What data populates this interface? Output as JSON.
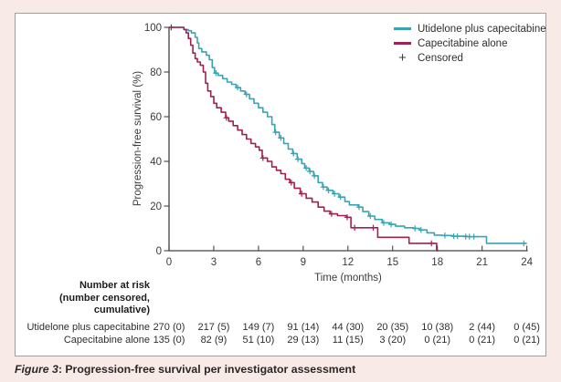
{
  "figure": {
    "caption": {
      "label": "Figure 3",
      "separator": ": ",
      "title": "Progression-free survival per investigator assessment"
    }
  },
  "chart_data": {
    "type": "line",
    "subtype": "kaplan-meier-step",
    "title": "",
    "xlabel": "Time (months)",
    "ylabel": "Progression-free survival (%)",
    "xlim": [
      0,
      24
    ],
    "ylim": [
      0,
      100
    ],
    "x_ticks": [
      0,
      3,
      6,
      9,
      12,
      15,
      18,
      21,
      24
    ],
    "y_ticks": [
      0,
      20,
      40,
      60,
      80,
      100
    ],
    "grid": false,
    "legend_position": "top-right",
    "axis_color": "#424242",
    "censored_legend": {
      "label": "Censored",
      "symbol": "+",
      "color": "#3f3f3f"
    },
    "series": [
      {
        "name": "Utidelone plus capecitabine",
        "color": "#39a3b3",
        "steps": [
          [
            0,
            100
          ],
          [
            0.9,
            100
          ],
          [
            1.0,
            99
          ],
          [
            1.3,
            98.5
          ],
          [
            1.5,
            97.5
          ],
          [
            1.75,
            95.5
          ],
          [
            1.9,
            93
          ],
          [
            2.0,
            90.5
          ],
          [
            2.2,
            89
          ],
          [
            2.5,
            87.5
          ],
          [
            2.7,
            85.5
          ],
          [
            2.9,
            82
          ],
          [
            3.05,
            79.5
          ],
          [
            3.3,
            78.5
          ],
          [
            3.6,
            77
          ],
          [
            3.9,
            75.5
          ],
          [
            4.2,
            74.5
          ],
          [
            4.5,
            73
          ],
          [
            4.8,
            71.5
          ],
          [
            5.1,
            70
          ],
          [
            5.4,
            68
          ],
          [
            5.7,
            66
          ],
          [
            6.0,
            64
          ],
          [
            6.3,
            62
          ],
          [
            6.6,
            60
          ],
          [
            6.9,
            56.5
          ],
          [
            7.1,
            53
          ],
          [
            7.4,
            50.5
          ],
          [
            7.7,
            48
          ],
          [
            8.0,
            45.5
          ],
          [
            8.3,
            43.5
          ],
          [
            8.6,
            41
          ],
          [
            8.9,
            39
          ],
          [
            9.1,
            37
          ],
          [
            9.4,
            35.5
          ],
          [
            9.7,
            33.5
          ],
          [
            10.0,
            30.5
          ],
          [
            10.3,
            28.5
          ],
          [
            10.6,
            27
          ],
          [
            11.0,
            25.5
          ],
          [
            11.4,
            24
          ],
          [
            11.8,
            22
          ],
          [
            12.1,
            20.5
          ],
          [
            12.7,
            19.5
          ],
          [
            13.0,
            17.5
          ],
          [
            13.4,
            15.5
          ],
          [
            13.8,
            14
          ],
          [
            14.3,
            12.5
          ],
          [
            14.8,
            11.8
          ],
          [
            15.2,
            11
          ],
          [
            15.8,
            10.3
          ],
          [
            16.4,
            10
          ],
          [
            16.8,
            9.3
          ],
          [
            17.3,
            8
          ],
          [
            17.8,
            7
          ],
          [
            18.3,
            6.8
          ],
          [
            19.0,
            6.5
          ],
          [
            20.0,
            6.3
          ],
          [
            21.3,
            3.3
          ],
          [
            24,
            3.3
          ]
        ],
        "censors": [
          [
            3.15,
            79.5
          ],
          [
            4.6,
            73
          ],
          [
            5.2,
            70
          ],
          [
            7.15,
            53
          ],
          [
            7.5,
            50.5
          ],
          [
            8.35,
            43.5
          ],
          [
            8.65,
            41
          ],
          [
            9.2,
            37
          ],
          [
            9.45,
            35.5
          ],
          [
            9.75,
            33.5
          ],
          [
            10.35,
            28.5
          ],
          [
            10.7,
            27
          ],
          [
            11.1,
            25.5
          ],
          [
            11.5,
            24
          ],
          [
            12.75,
            19.5
          ],
          [
            13.5,
            15.5
          ],
          [
            14.4,
            12.5
          ],
          [
            14.9,
            11.8
          ],
          [
            16.5,
            10
          ],
          [
            16.9,
            9.3
          ],
          [
            18.5,
            6.8
          ],
          [
            19.1,
            6.5
          ],
          [
            19.35,
            6.5
          ],
          [
            19.9,
            6.3
          ],
          [
            20.15,
            6.3
          ],
          [
            20.45,
            6.3
          ],
          [
            23.8,
            3.3
          ]
        ]
      },
      {
        "name": "Capecitabine alone",
        "color": "#9e2150",
        "steps": [
          [
            0,
            100
          ],
          [
            0.9,
            100
          ],
          [
            1.0,
            99
          ],
          [
            1.15,
            97.5
          ],
          [
            1.3,
            95
          ],
          [
            1.45,
            92
          ],
          [
            1.6,
            88.5
          ],
          [
            1.75,
            86
          ],
          [
            1.9,
            84.5
          ],
          [
            2.1,
            83
          ],
          [
            2.3,
            80
          ],
          [
            2.45,
            75
          ],
          [
            2.6,
            71.5
          ],
          [
            2.8,
            69
          ],
          [
            3.0,
            66
          ],
          [
            3.2,
            64
          ],
          [
            3.5,
            62
          ],
          [
            3.8,
            59.5
          ],
          [
            4.0,
            58
          ],
          [
            4.3,
            56
          ],
          [
            4.6,
            54
          ],
          [
            4.9,
            52
          ],
          [
            5.2,
            50
          ],
          [
            5.5,
            48
          ],
          [
            5.8,
            46.5
          ],
          [
            6.05,
            45
          ],
          [
            6.25,
            41.5
          ],
          [
            6.6,
            40
          ],
          [
            6.9,
            37.5
          ],
          [
            7.2,
            36
          ],
          [
            7.5,
            34.5
          ],
          [
            7.8,
            32
          ],
          [
            8.1,
            30.5
          ],
          [
            8.4,
            28
          ],
          [
            8.8,
            25.5
          ],
          [
            9.2,
            23.5
          ],
          [
            9.6,
            21.8
          ],
          [
            10.0,
            19.5
          ],
          [
            10.4,
            17.7
          ],
          [
            10.8,
            16.5
          ],
          [
            11.3,
            15.7
          ],
          [
            11.9,
            15
          ],
          [
            12.2,
            10.3
          ],
          [
            14.0,
            6.0
          ],
          [
            16.1,
            3.3
          ],
          [
            17.95,
            0
          ],
          [
            18.1,
            0
          ]
        ],
        "censors": [
          [
            0.15,
            100
          ],
          [
            3.85,
            59.5
          ],
          [
            6.3,
            41.5
          ],
          [
            8.2,
            30.5
          ],
          [
            8.9,
            25.5
          ],
          [
            10.9,
            16.5
          ],
          [
            11.95,
            15
          ],
          [
            12.45,
            10.3
          ],
          [
            13.7,
            10.3
          ],
          [
            17.6,
            3.3
          ]
        ]
      }
    ]
  },
  "risk_table": {
    "header_lines": [
      "Number at risk",
      "(number censored,",
      "cumulative)"
    ],
    "time_points": [
      0,
      3,
      6,
      9,
      12,
      15,
      18,
      21,
      24
    ],
    "rows": [
      {
        "label": "Utidelone plus capecitabine",
        "values": [
          "270 (0)",
          "217 (5)",
          "149 (7)",
          "91 (14)",
          "44 (30)",
          "20 (35)",
          "10 (38)",
          "2 (44)",
          "0 (45)"
        ]
      },
      {
        "label": "Capecitabine alone",
        "values": [
          "135 (0)",
          "82 (9)",
          "51 (10)",
          "29 (13)",
          "11 (15)",
          "3 (20)",
          "0 (21)",
          "0 (21)",
          "0 (21)"
        ]
      }
    ]
  }
}
